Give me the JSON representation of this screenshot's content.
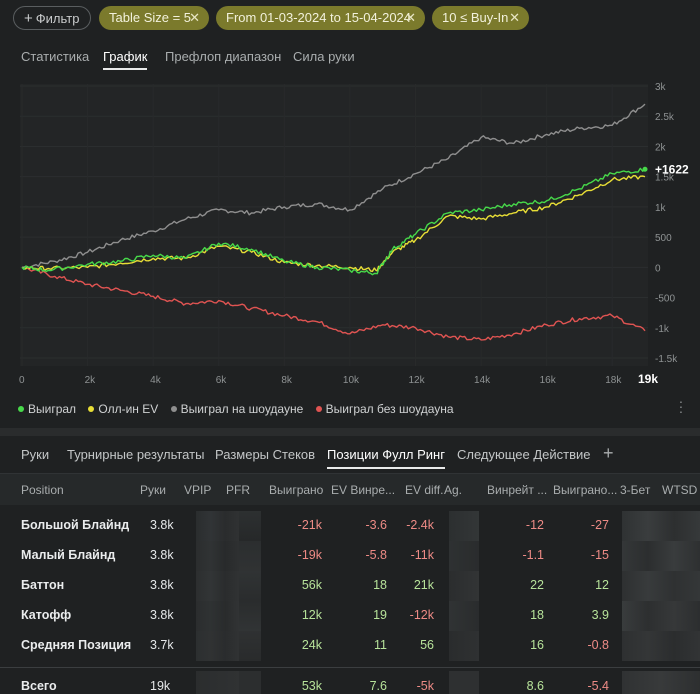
{
  "filters": {
    "add_label": "Фильтр",
    "chips": [
      {
        "label": "Table Size = 5"
      },
      {
        "label": "From 01-03-2024 to 15-04-2024"
      },
      {
        "label": "10 ≤ Buy-In"
      }
    ],
    "colors": {
      "chip": "#7b7a2c"
    }
  },
  "top_tabs": [
    "Статистика",
    "График",
    "Префлоп диапазон",
    "Сила руки"
  ],
  "chart_data": {
    "type": "line",
    "x_ticks": [
      "0",
      "2k",
      "4k",
      "6k",
      "8k",
      "10k",
      "12k",
      "14k",
      "16k",
      "18k"
    ],
    "x_end_label": "19k",
    "y_ticks": [
      "3k",
      "2.5k",
      "2k",
      "1.5k",
      "1k",
      "500",
      "0",
      "-500",
      "-1k",
      "-1.5k"
    ],
    "xlim": [
      0,
      19000
    ],
    "ylim": [
      -1500,
      3000
    ],
    "end_value_label": "+1622",
    "series": [
      {
        "name": "Выиграл",
        "color": "#47d94a",
        "x": [
          0,
          800,
          2000,
          3000,
          4000,
          5000,
          6000,
          7000,
          8000,
          9000,
          10000,
          10800,
          11300,
          12000,
          13000,
          14000,
          15000,
          16000,
          17000,
          18000,
          19000
        ],
        "values": [
          0,
          -50,
          50,
          100,
          200,
          150,
          400,
          300,
          100,
          0,
          -50,
          -100,
          300,
          550,
          900,
          950,
          1050,
          1100,
          1300,
          1550,
          1622
        ]
      },
      {
        "name": "Олл-ин EV",
        "color": "#e8de36",
        "x": [
          0,
          800,
          2000,
          3000,
          4000,
          5000,
          6000,
          7000,
          8000,
          9000,
          10000,
          10800,
          11300,
          12000,
          13000,
          14000,
          15000,
          16000,
          17000,
          18000,
          19000
        ],
        "values": [
          0,
          -20,
          0,
          70,
          150,
          150,
          350,
          250,
          80,
          30,
          0,
          -50,
          250,
          450,
          850,
          800,
          900,
          1000,
          1200,
          1450,
          1500
        ]
      },
      {
        "name": "Выиграл на шоудауне",
        "color": "#8f8f8f",
        "x": [
          0,
          1000,
          2000,
          3000,
          4000,
          5000,
          6000,
          7000,
          8000,
          9000,
          10000,
          11000,
          12000,
          13000,
          14000,
          15000,
          16000,
          17000,
          18000,
          19000
        ],
        "values": [
          0,
          100,
          250,
          450,
          600,
          800,
          950,
          900,
          1000,
          1050,
          950,
          1300,
          1550,
          1800,
          2150,
          2050,
          2200,
          2300,
          2350,
          2700
        ]
      },
      {
        "name": "Выиграл без шоудауна",
        "color": "#e05452",
        "x": [
          0,
          1000,
          2000,
          3000,
          4000,
          5000,
          6000,
          7000,
          8000,
          9000,
          10000,
          11000,
          12000,
          13000,
          14000,
          15000,
          16000,
          17000,
          18000,
          19000
        ],
        "values": [
          0,
          -150,
          -280,
          -380,
          -480,
          -600,
          -550,
          -680,
          -800,
          -900,
          -1100,
          -950,
          -1000,
          -1150,
          -1200,
          -1100,
          -950,
          -850,
          -800,
          -1050
        ]
      }
    ]
  },
  "bottom_tabs": [
    "Руки",
    "Турнирные результаты",
    "Размеры Стеков",
    "Позиции Фулл Ринг",
    "Следующее Действие",
    "+"
  ],
  "table": {
    "columns": [
      "Position",
      "Руки",
      "VPIP",
      "PFR",
      "Выиграно",
      "EV Винре...",
      "EV diff.",
      "Ag.",
      "Винрейт ...",
      "Выиграно...",
      "3-Бет",
      "WTSD"
    ],
    "rows": [
      {
        "position": "Большой Блайнд",
        "hands": "3.8k",
        "won": "-21k",
        "ev_wr": "-3.6",
        "ev_diff": "-2.4k",
        "winrate": "-12",
        "won2": "-27"
      },
      {
        "position": "Малый Блайнд",
        "hands": "3.8k",
        "won": "-19k",
        "ev_wr": "-5.8",
        "ev_diff": "-11k",
        "winrate": "-1.1",
        "won2": "-15"
      },
      {
        "position": "Баттон",
        "hands": "3.8k",
        "won": "56k",
        "ev_wr": "18",
        "ev_diff": "21k",
        "winrate": "22",
        "won2": "12"
      },
      {
        "position": "Катофф",
        "hands": "3.8k",
        "won": "12k",
        "ev_wr": "19",
        "ev_diff": "-12k",
        "winrate": "18",
        "won2": "3.9"
      },
      {
        "position": "Средняя Позиция",
        "hands": "3.7k",
        "won": "24k",
        "ev_wr": "11",
        "ev_diff": "56",
        "winrate": "16",
        "won2": "-0.8"
      }
    ],
    "total": {
      "position": "Всего",
      "hands": "19k",
      "won": "53k",
      "ev_wr": "7.6",
      "ev_diff": "-5k",
      "winrate": "8.6",
      "won2": "-5.4"
    }
  }
}
